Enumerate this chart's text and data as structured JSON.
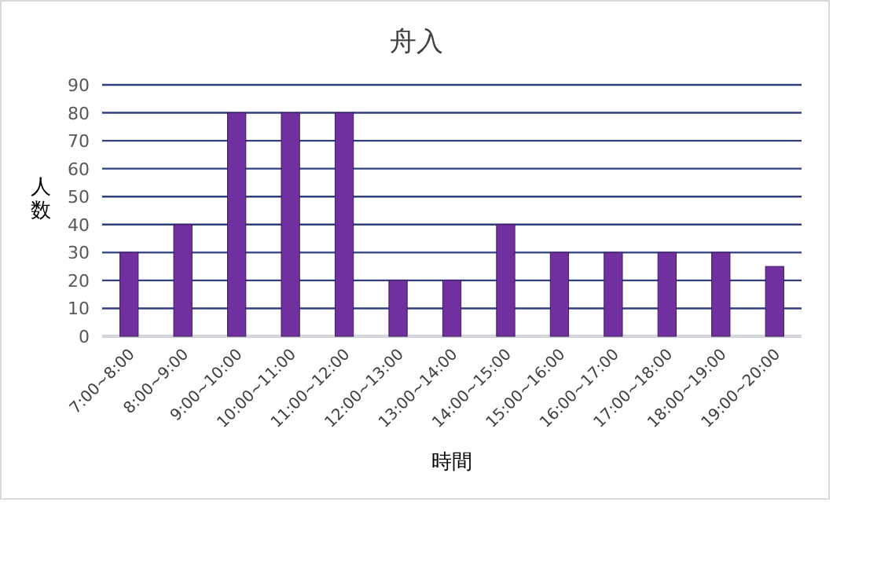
{
  "chart_data": {
    "type": "bar",
    "title": "舟入",
    "xlabel": "時間",
    "ylabel": "人数",
    "categories": [
      "7:00~8:00",
      "8:00~9:00",
      "9:00~10:00",
      "10:00~11:00",
      "11:00~12:00",
      "12:00~13:00",
      "13:00~14:00",
      "14:00~15:00",
      "15:00~16:00",
      "16:00~17:00",
      "17:00~18:00",
      "18:00~19:00",
      "19:00~20:00"
    ],
    "values": [
      30,
      40,
      80,
      80,
      80,
      20,
      20,
      40,
      30,
      30,
      30,
      30,
      25
    ],
    "color": "#7030a0",
    "ylim": [
      0,
      90
    ],
    "yticks": [
      0,
      10,
      20,
      30,
      40,
      50,
      60,
      70,
      80,
      90
    ],
    "grid": "y"
  }
}
